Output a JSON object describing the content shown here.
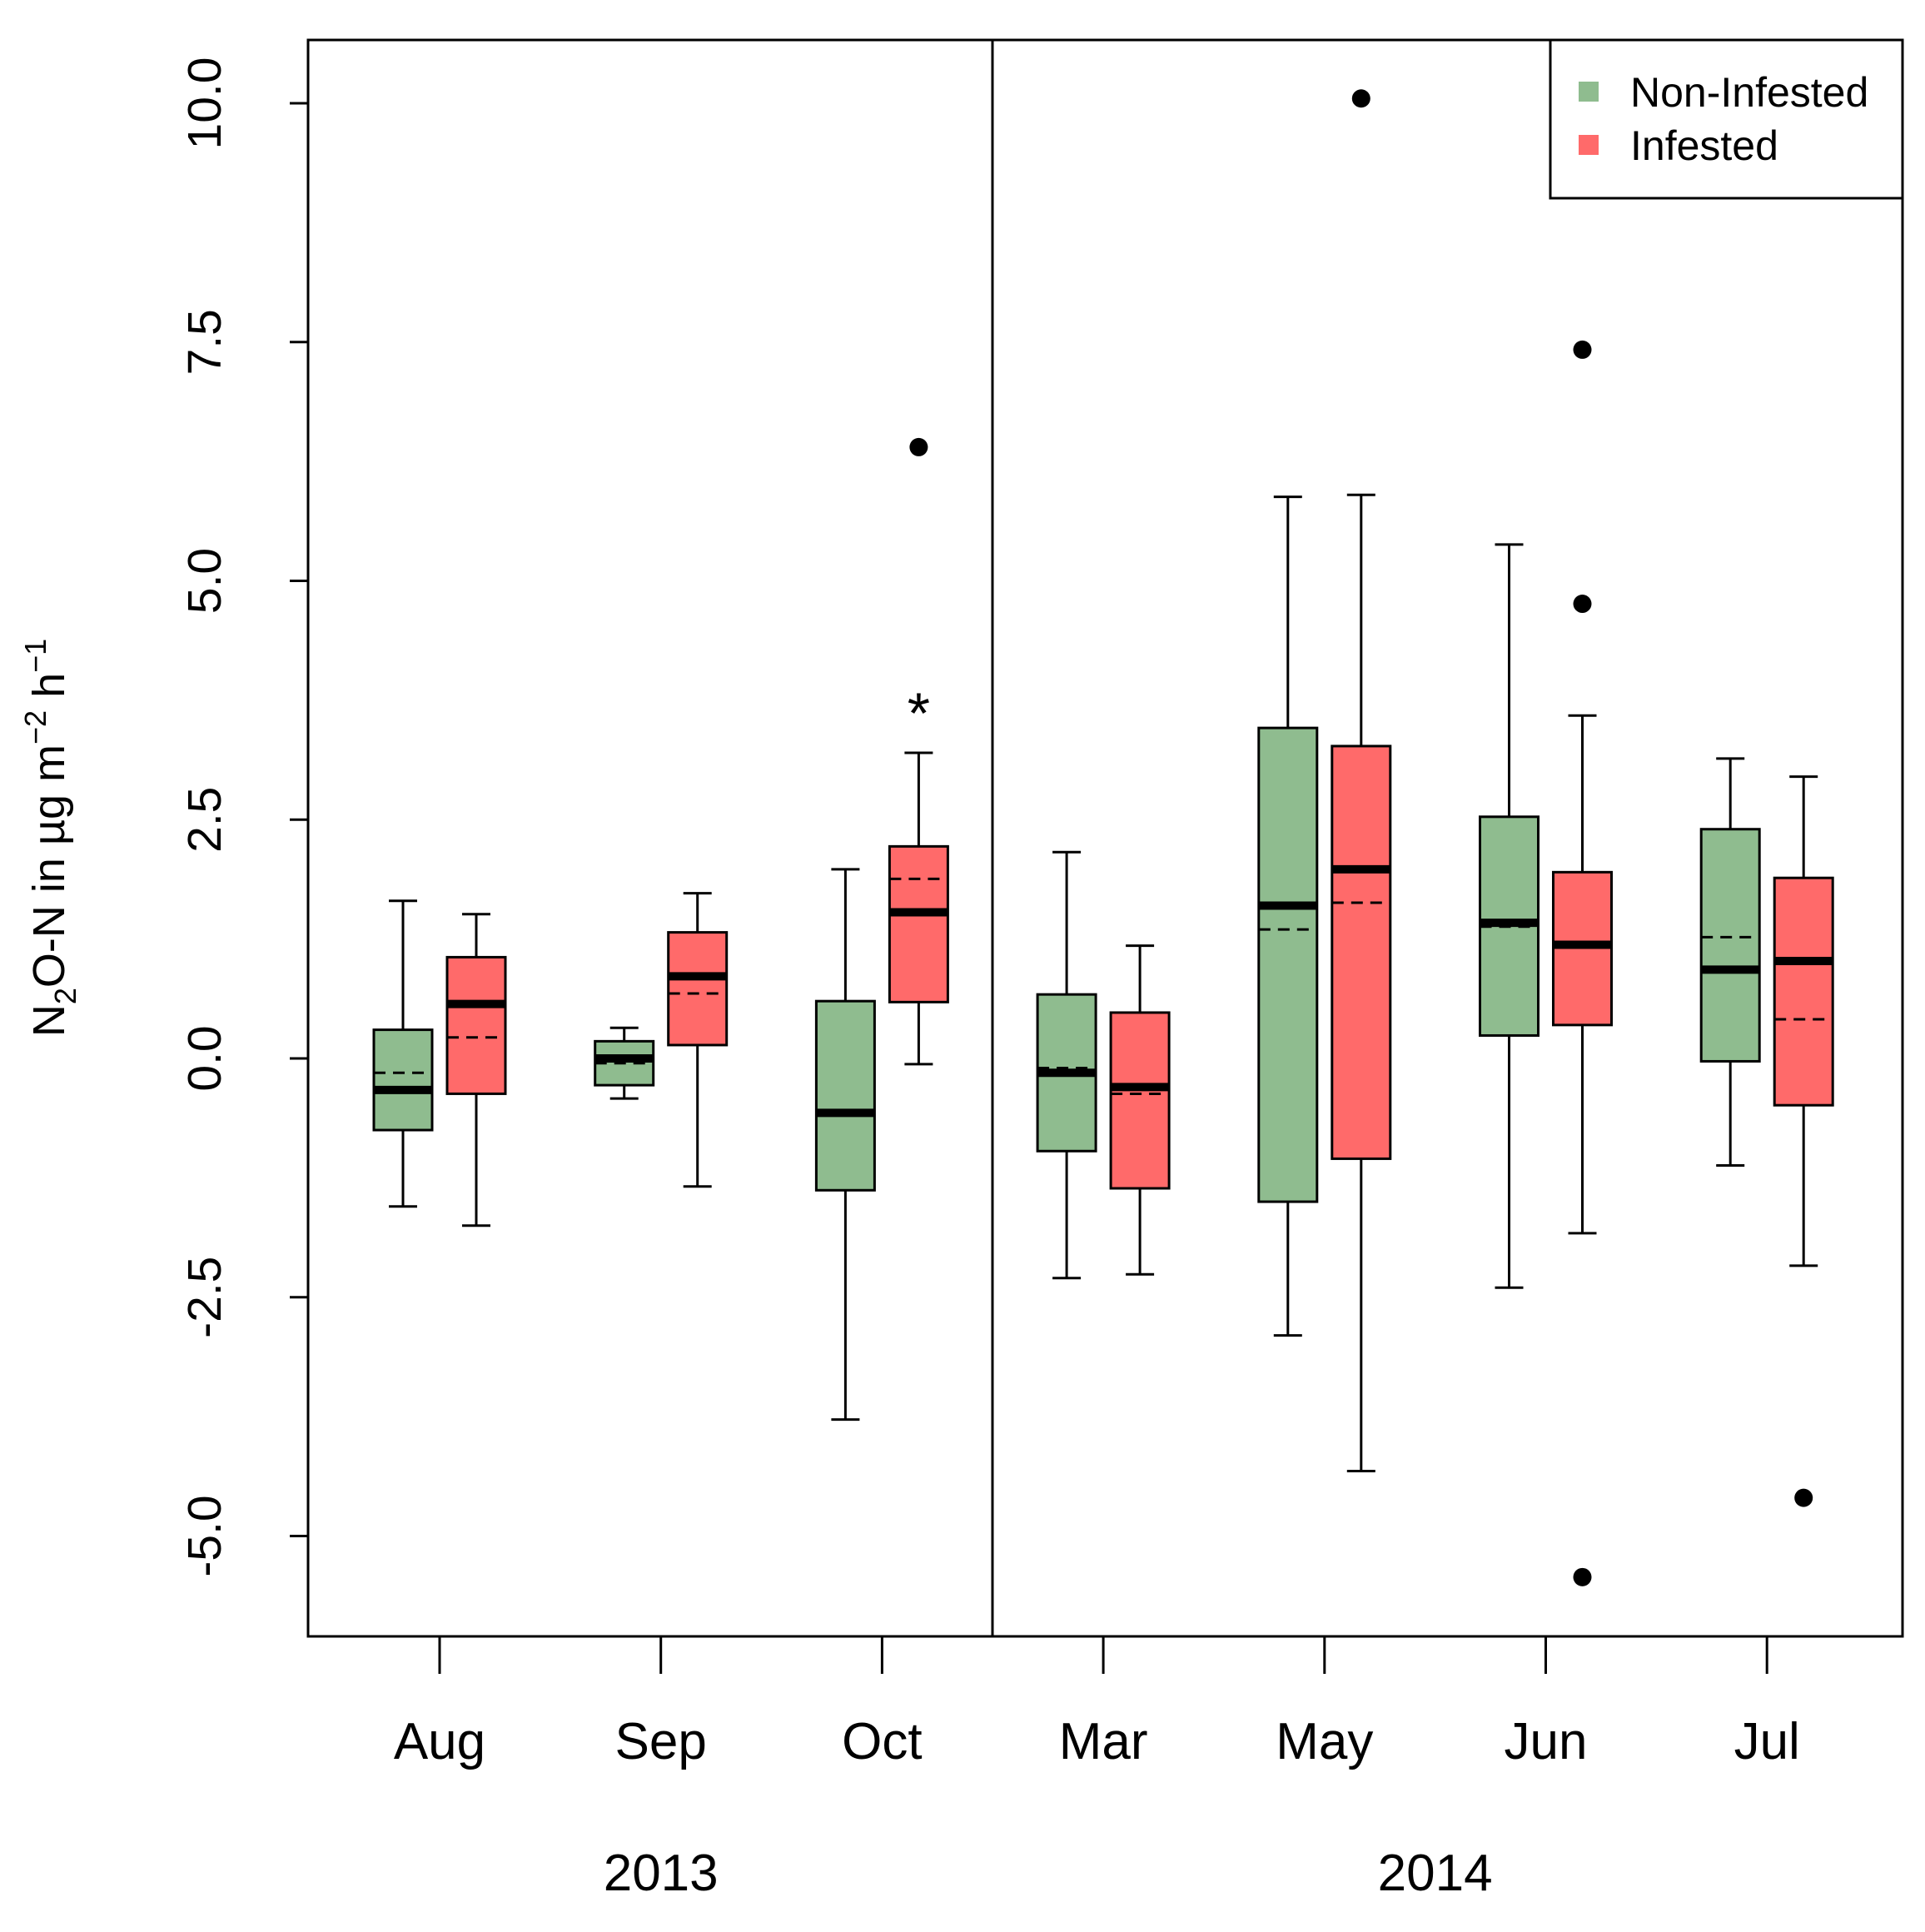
{
  "chart_data": {
    "type": "box",
    "ylabel": {
      "main": "N",
      "sub": "2",
      "rest": "O-N in µg m",
      "sup1": "−2",
      "unit2": " h",
      "sup2": "−1"
    },
    "ylim": [
      -6.2,
      10.7
    ],
    "yticks": [
      -5.0,
      -2.5,
      0.0,
      2.5,
      5.0,
      7.5,
      10.0
    ],
    "ytick_labels": [
      "-5.0",
      "-2.5",
      "0.0",
      "2.5",
      "5.0",
      "7.5",
      "10.0"
    ],
    "categories": [
      "Aug",
      "Sep",
      "Oct",
      "Mar",
      "May",
      "Jun",
      "Jul"
    ],
    "years": [
      {
        "label": "2013",
        "months": [
          "Aug",
          "Sep",
          "Oct"
        ]
      },
      {
        "label": "2014",
        "months": [
          "Mar",
          "May",
          "Jun",
          "Jul"
        ]
      }
    ],
    "legend": {
      "position": "top-right",
      "entries": [
        {
          "name": "Non-Infested",
          "color": "#8fbc8f"
        },
        {
          "name": "Infested",
          "color": "#ff6a6a"
        }
      ]
    },
    "significance": [
      {
        "month": "Oct",
        "series": "Infested",
        "label": "*",
        "y": 3.7
      }
    ],
    "series": [
      {
        "name": "Non-Infested",
        "color": "#8fbc8f",
        "boxes": [
          {
            "month": "Aug",
            "q1": -0.75,
            "median": -0.33,
            "mean": -0.15,
            "q3": 0.3,
            "whisker_low": -1.55,
            "whisker_high": 1.65,
            "outliers": []
          },
          {
            "month": "Sep",
            "q1": -0.28,
            "median": 0.0,
            "mean": -0.05,
            "q3": 0.18,
            "whisker_low": -0.42,
            "whisker_high": 0.32,
            "outliers": []
          },
          {
            "month": "Oct",
            "q1": -1.38,
            "median": -0.57,
            "mean": -0.57,
            "q3": 0.6,
            "whisker_low": -3.78,
            "whisker_high": 1.98,
            "outliers": []
          },
          {
            "month": "Mar",
            "q1": -0.97,
            "median": -0.15,
            "mean": -0.1,
            "q3": 0.67,
            "whisker_low": -2.3,
            "whisker_high": 2.16,
            "outliers": []
          },
          {
            "month": "May",
            "q1": -1.5,
            "median": 1.6,
            "mean": 1.35,
            "q3": 3.46,
            "whisker_low": -2.9,
            "whisker_high": 5.88,
            "outliers": []
          },
          {
            "month": "Jun",
            "q1": 0.24,
            "median": 1.42,
            "mean": 1.38,
            "q3": 2.53,
            "whisker_low": -2.4,
            "whisker_high": 5.38,
            "outliers": []
          },
          {
            "month": "Jul",
            "q1": -0.03,
            "median": 0.93,
            "mean": 1.27,
            "q3": 2.4,
            "whisker_low": -1.12,
            "whisker_high": 3.14,
            "outliers": []
          }
        ]
      },
      {
        "name": "Infested",
        "color": "#ff6a6a",
        "boxes": [
          {
            "month": "Aug",
            "q1": -0.37,
            "median": 0.57,
            "mean": 0.22,
            "q3": 1.06,
            "whisker_low": -1.75,
            "whisker_high": 1.51,
            "outliers": []
          },
          {
            "month": "Sep",
            "q1": 0.14,
            "median": 0.86,
            "mean": 0.68,
            "q3": 1.32,
            "whisker_low": -1.34,
            "whisker_high": 1.73,
            "outliers": []
          },
          {
            "month": "Oct",
            "q1": 0.59,
            "median": 1.53,
            "mean": 1.88,
            "q3": 2.22,
            "whisker_low": -0.06,
            "whisker_high": 3.2,
            "outliers": [
              6.4
            ]
          },
          {
            "month": "Mar",
            "q1": -1.36,
            "median": -0.3,
            "mean": -0.37,
            "q3": 0.48,
            "whisker_low": -2.26,
            "whisker_high": 1.18,
            "outliers": []
          },
          {
            "month": "May",
            "q1": -1.05,
            "median": 1.98,
            "mean": 1.63,
            "q3": 3.27,
            "whisker_low": -4.32,
            "whisker_high": 5.9,
            "outliers": [
              10.05
            ]
          },
          {
            "month": "Jun",
            "q1": 0.35,
            "median": 1.19,
            "mean": 1.19,
            "q3": 1.95,
            "whisker_low": -1.83,
            "whisker_high": 3.59,
            "outliers": [
              7.42,
              4.76,
              -5.43
            ]
          },
          {
            "month": "Jul",
            "q1": -0.49,
            "median": 1.02,
            "mean": 0.41,
            "q3": 1.89,
            "whisker_low": -2.17,
            "whisker_high": 2.95,
            "outliers": [
              -4.6
            ]
          }
        ]
      }
    ]
  }
}
